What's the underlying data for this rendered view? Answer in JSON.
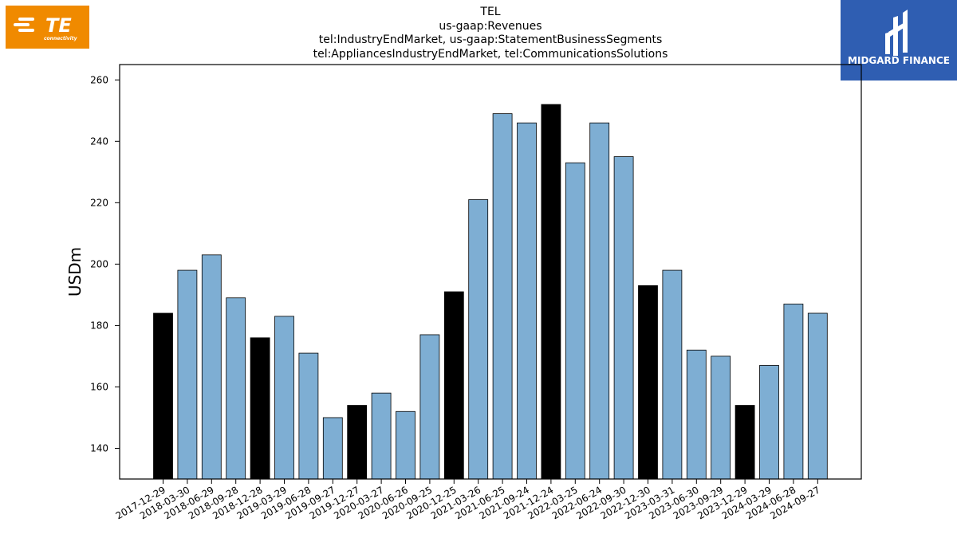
{
  "logos": {
    "left": {
      "icon": "te-connectivity-logo",
      "text": "TE",
      "subtext": "connectivity",
      "color": "#f08a00"
    },
    "right": {
      "icon": "midgard-finance-logo",
      "text": "MIDGARD FINANCE",
      "color": "#2f5eb2"
    }
  },
  "chart_data": {
    "type": "bar",
    "title_lines": [
      "TEL",
      "us-gaap:Revenues",
      "tel:IndustryEndMarket, us-gaap:StatementBusinessSegments",
      "tel:AppliancesIndustryEndMarket, tel:CommunicationsSolutions"
    ],
    "xlabel": "",
    "ylabel": "USDm",
    "ylim": [
      130,
      265
    ],
    "yticks": [
      140,
      160,
      180,
      200,
      220,
      240,
      260
    ],
    "grid": false,
    "legend": "none",
    "categories": [
      "2017-12-29",
      "2018-03-30",
      "2018-06-29",
      "2018-09-28",
      "2018-12-28",
      "2019-03-29",
      "2019-06-28",
      "2019-09-27",
      "2019-12-27",
      "2020-03-27",
      "2020-06-26",
      "2020-09-25",
      "2020-12-25",
      "2021-03-26",
      "2021-06-25",
      "2021-09-24",
      "2021-12-24",
      "2022-03-25",
      "2022-06-24",
      "2022-09-30",
      "2022-12-30",
      "2023-03-31",
      "2023-06-30",
      "2023-09-29",
      "2023-12-29",
      "2024-03-29",
      "2024-06-28",
      "2024-09-27"
    ],
    "values": [
      184,
      198,
      203,
      189,
      176,
      183,
      171,
      150,
      154,
      158,
      152,
      177,
      191,
      221,
      249,
      246,
      252,
      233,
      246,
      235,
      193,
      198,
      172,
      170,
      154,
      167,
      187,
      184
    ],
    "highlight": [
      true,
      false,
      false,
      false,
      true,
      false,
      false,
      false,
      true,
      false,
      false,
      false,
      true,
      false,
      false,
      false,
      true,
      false,
      false,
      false,
      true,
      false,
      false,
      false,
      true,
      false,
      false,
      false
    ],
    "colors": {
      "bar": "#7eaed3",
      "highlight": "#000000",
      "edge": "#000000"
    }
  }
}
